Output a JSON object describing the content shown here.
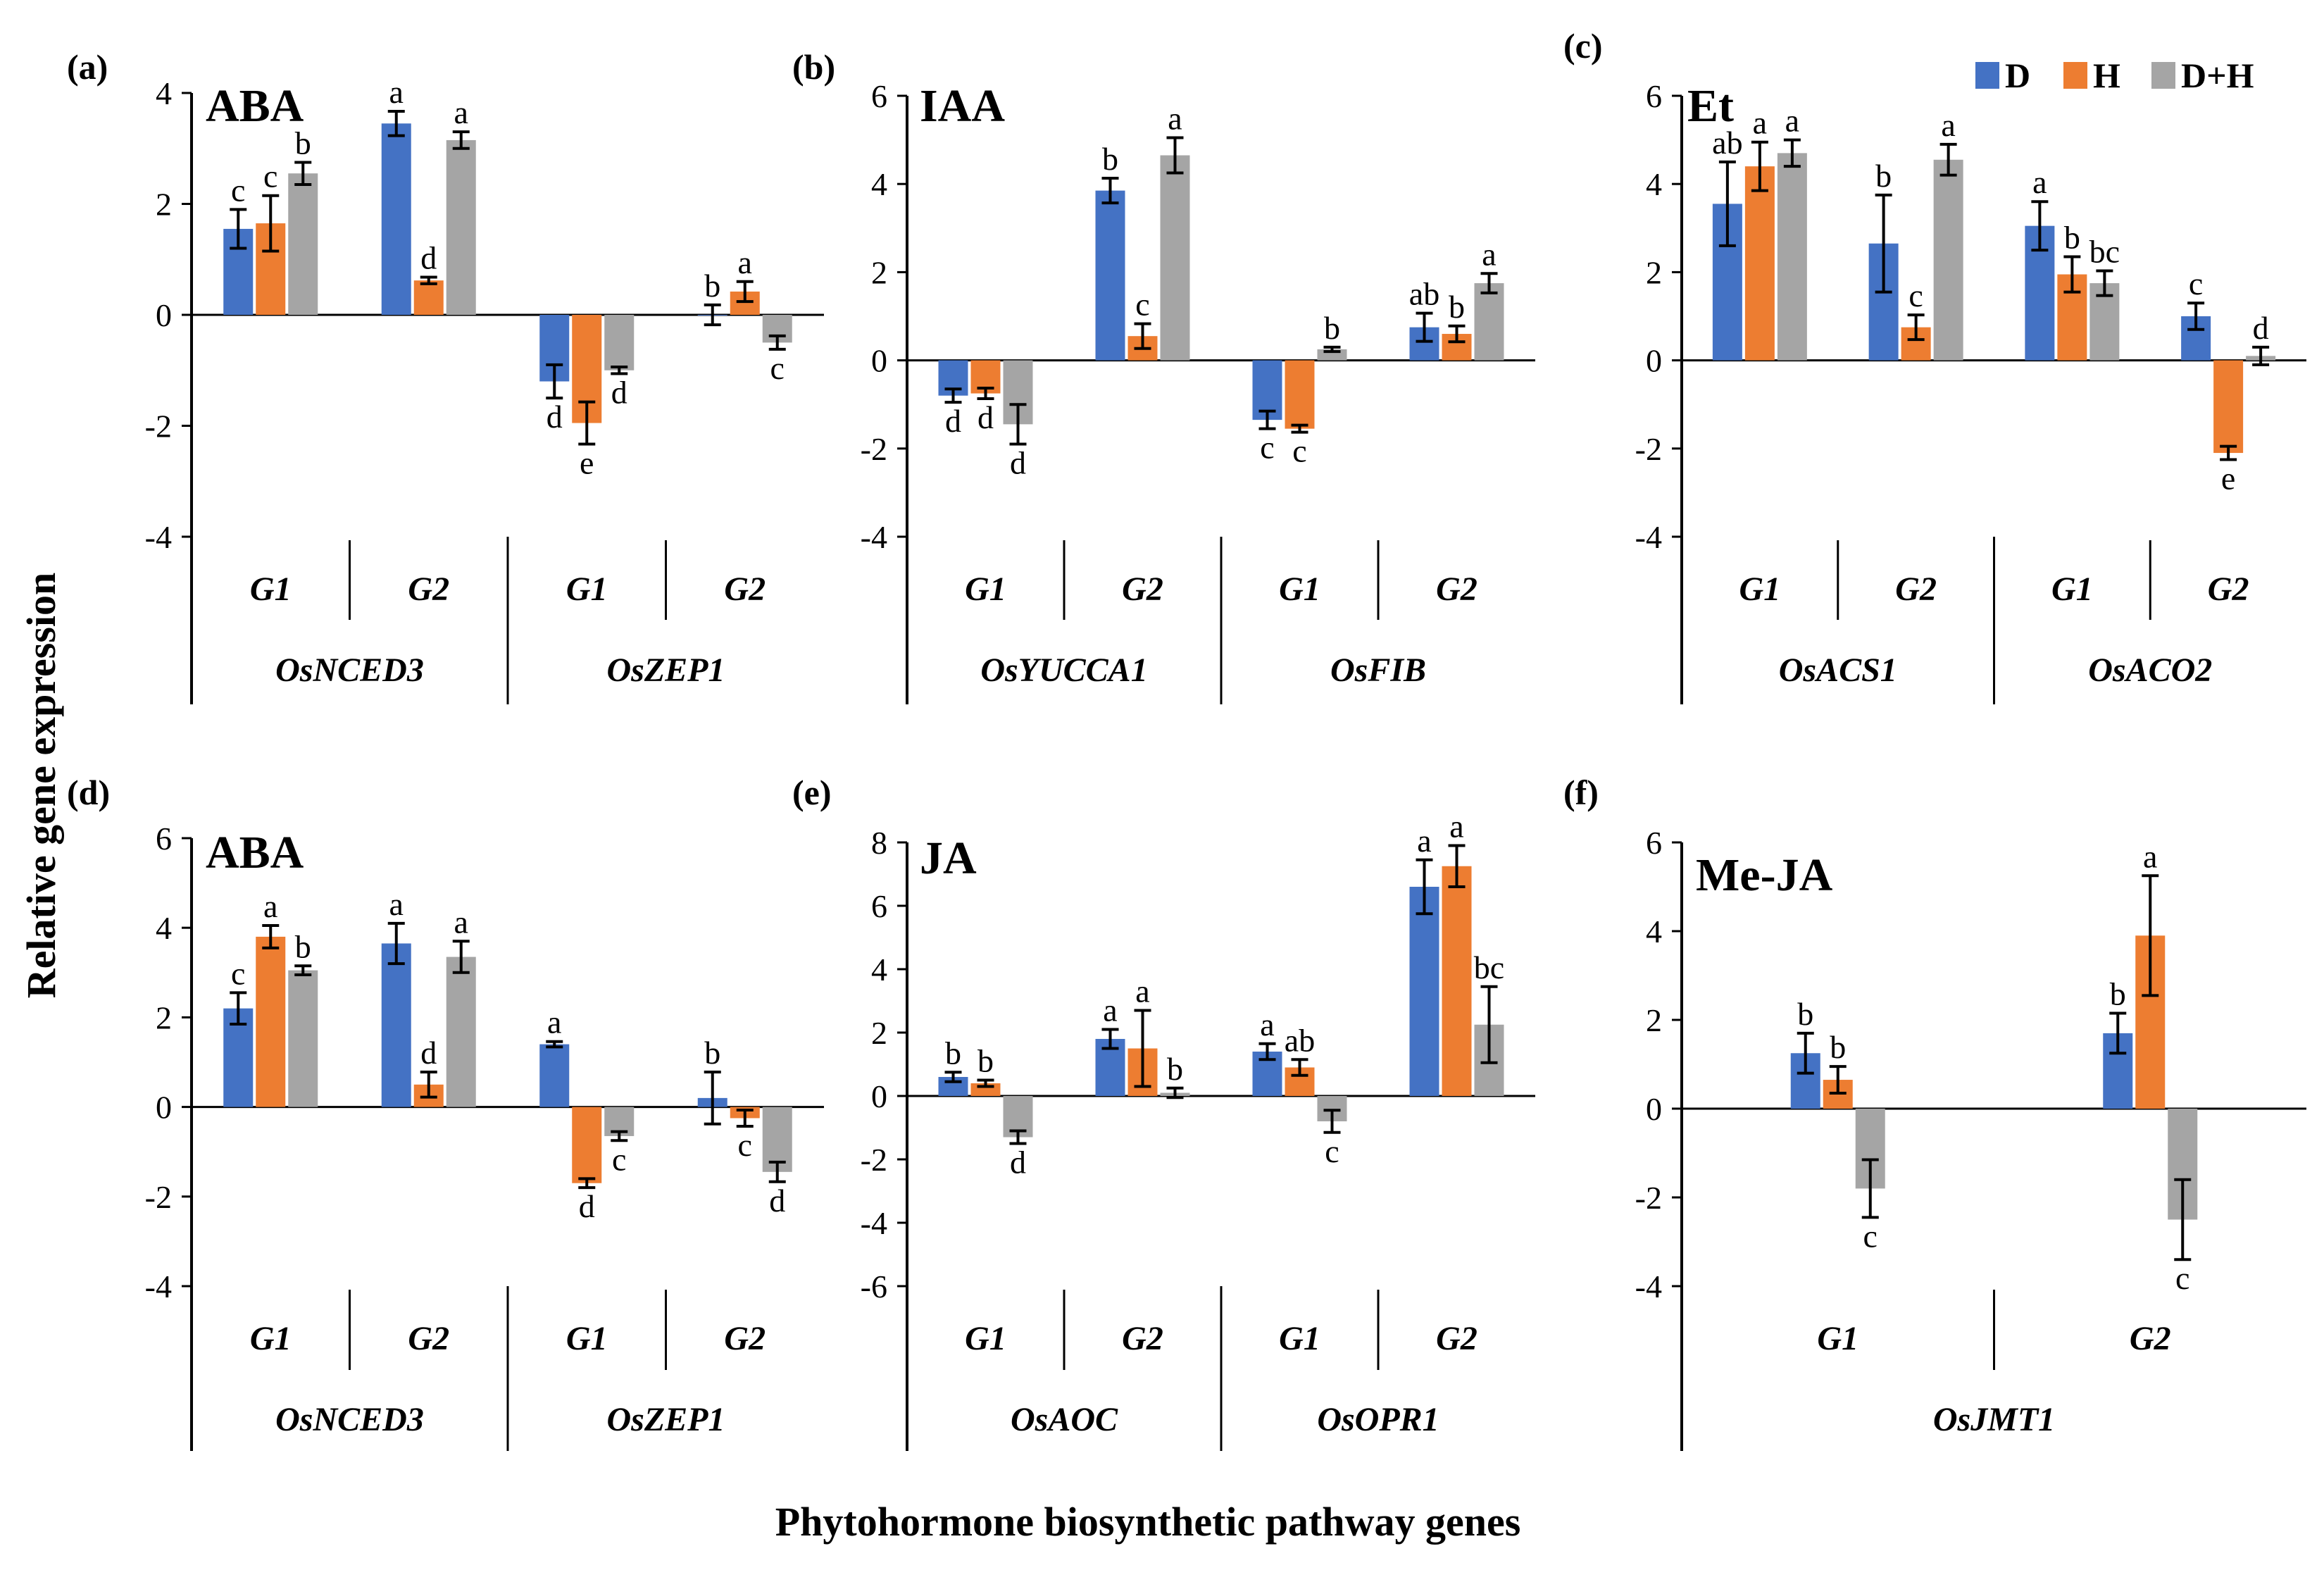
{
  "figure": {
    "ylabel": "Relative gene expression",
    "xlabel": "Phytohormone biosynthetic pathway genes"
  },
  "legend": [
    {
      "name": "D",
      "color": "#4472C4"
    },
    {
      "name": "H",
      "color": "#ED7D31"
    },
    {
      "name": "D+H",
      "color": "#A5A5A5"
    }
  ],
  "chart_data": [
    {
      "panel": "(a)",
      "title": "ABA",
      "type": "bar",
      "ylim": [
        -4,
        4
      ],
      "ticks": [
        4,
        2,
        0,
        -2,
        -4
      ],
      "categories": [
        "G1",
        "G2",
        "G1",
        "G2"
      ],
      "genes": [
        "OsNCED3",
        "OsZEP1"
      ],
      "series": [
        {
          "name": "D",
          "values": [
            1.55,
            3.45,
            -1.2,
            0.0
          ],
          "errors": [
            0.35,
            0.22,
            0.3,
            0.18
          ],
          "letters": [
            "c",
            "a",
            "d",
            "b"
          ]
        },
        {
          "name": "H",
          "values": [
            1.65,
            0.62,
            -1.95,
            0.42
          ],
          "errors": [
            0.5,
            0.06,
            0.38,
            0.18
          ],
          "letters": [
            "c",
            "d",
            "e",
            "a"
          ]
        },
        {
          "name": "D+H",
          "values": [
            2.55,
            3.15,
            -1.0,
            -0.5
          ],
          "errors": [
            0.2,
            0.15,
            0.06,
            0.12
          ],
          "letters": [
            "b",
            "a",
            "d",
            "c"
          ]
        }
      ]
    },
    {
      "panel": "(b)",
      "title": "IAA",
      "type": "bar",
      "ylim": [
        -4,
        6
      ],
      "ticks": [
        6,
        4,
        2,
        0,
        -2,
        -4
      ],
      "categories": [
        "G1",
        "G2",
        "G1",
        "G2"
      ],
      "genes": [
        "OsYUCCA1",
        "OsFIB"
      ],
      "series": [
        {
          "name": "D",
          "values": [
            -0.8,
            3.85,
            -1.35,
            0.75
          ],
          "errors": [
            0.15,
            0.28,
            0.2,
            0.32
          ],
          "letters": [
            "d",
            "b",
            "c",
            "ab"
          ]
        },
        {
          "name": "H",
          "values": [
            -0.75,
            0.55,
            -1.55,
            0.6
          ],
          "errors": [
            0.12,
            0.28,
            0.08,
            0.18
          ],
          "letters": [
            "d",
            "c",
            "c",
            "b"
          ]
        },
        {
          "name": "D+H",
          "values": [
            -1.45,
            4.65,
            0.25,
            1.75
          ],
          "errors": [
            0.45,
            0.4,
            0.05,
            0.22
          ],
          "letters": [
            "d",
            "a",
            "b",
            "a"
          ]
        }
      ]
    },
    {
      "panel": "(c)",
      "title": "Et",
      "type": "bar",
      "ylim": [
        -4,
        6
      ],
      "ticks": [
        6,
        4,
        2,
        0,
        -2,
        -4
      ],
      "categories": [
        "G1",
        "G2",
        "G1",
        "G2"
      ],
      "genes": [
        "OsACS1",
        "OsACO2"
      ],
      "series": [
        {
          "name": "D",
          "values": [
            3.55,
            2.65,
            3.05,
            1.0
          ],
          "errors": [
            0.95,
            1.1,
            0.55,
            0.3
          ],
          "letters": [
            "ab",
            "b",
            "a",
            "c"
          ]
        },
        {
          "name": "H",
          "values": [
            4.4,
            0.75,
            1.95,
            -2.1
          ],
          "errors": [
            0.55,
            0.28,
            0.4,
            0.15
          ],
          "letters": [
            "a",
            "c",
            "b",
            "e"
          ]
        },
        {
          "name": "D+H",
          "values": [
            4.7,
            4.55,
            1.75,
            0.1
          ],
          "errors": [
            0.3,
            0.35,
            0.28,
            0.2
          ],
          "letters": [
            "a",
            "a",
            "bc",
            "d"
          ]
        }
      ]
    },
    {
      "panel": "(d)",
      "title": "ABA",
      "type": "bar",
      "ylim": [
        -4,
        6
      ],
      "ticks": [
        6,
        4,
        2,
        0,
        -2,
        -4
      ],
      "categories": [
        "G1",
        "G2",
        "G1",
        "G2"
      ],
      "genes": [
        "OsNCED3",
        "OsZEP1"
      ],
      "series": [
        {
          "name": "D",
          "values": [
            2.2,
            3.65,
            1.4,
            0.2
          ],
          "errors": [
            0.35,
            0.45,
            0.06,
            0.58
          ],
          "letters": [
            "c",
            "a",
            "a",
            "b"
          ]
        },
        {
          "name": "H",
          "values": [
            3.8,
            0.5,
            -1.7,
            -0.25
          ],
          "errors": [
            0.25,
            0.28,
            0.1,
            0.18
          ],
          "letters": [
            "a",
            "d",
            "d",
            "c"
          ]
        },
        {
          "name": "D+H",
          "values": [
            3.05,
            3.35,
            -0.65,
            -1.45
          ],
          "errors": [
            0.1,
            0.35,
            0.1,
            0.22
          ],
          "letters": [
            "b",
            "a",
            "c",
            "d"
          ]
        }
      ]
    },
    {
      "panel": "(e)",
      "title": "JA",
      "type": "bar",
      "ylim": [
        -6,
        8
      ],
      "ticks": [
        8,
        6,
        4,
        2,
        0,
        -2,
        -4,
        -6
      ],
      "categories": [
        "G1",
        "G2",
        "G1",
        "G2"
      ],
      "genes": [
        "OsAOC",
        "OsOPR1"
      ],
      "series": [
        {
          "name": "D",
          "values": [
            0.6,
            1.8,
            1.4,
            6.6
          ],
          "errors": [
            0.15,
            0.3,
            0.25,
            0.85
          ],
          "letters": [
            "b",
            "a",
            "a",
            "a"
          ]
        },
        {
          "name": "H",
          "values": [
            0.4,
            1.5,
            0.9,
            7.25
          ],
          "errors": [
            0.1,
            1.2,
            0.25,
            0.65
          ],
          "letters": [
            "b",
            "a",
            "ab",
            "a"
          ]
        },
        {
          "name": "D+H",
          "values": [
            -1.3,
            0.1,
            -0.8,
            2.25
          ],
          "errors": [
            0.2,
            0.15,
            0.35,
            1.2
          ],
          "letters": [
            "d",
            "b",
            "c",
            "bc"
          ]
        }
      ]
    },
    {
      "panel": "(f)",
      "title": "Me-JA",
      "type": "bar",
      "ylim": [
        -4,
        6
      ],
      "ticks": [
        6,
        4,
        2,
        0,
        -2,
        -4
      ],
      "categories": [
        "G1",
        "G2"
      ],
      "genes": [
        "OsJMT1"
      ],
      "series": [
        {
          "name": "D",
          "values": [
            1.25,
            1.7
          ],
          "errors": [
            0.45,
            0.45
          ],
          "letters": [
            "b",
            "b"
          ]
        },
        {
          "name": "H",
          "values": [
            0.65,
            3.9
          ],
          "errors": [
            0.3,
            1.35
          ],
          "letters": [
            "b",
            "a"
          ]
        },
        {
          "name": "D+H",
          "values": [
            -1.8,
            -2.5
          ],
          "errors": [
            0.65,
            0.9
          ],
          "letters": [
            "c",
            "c"
          ]
        }
      ]
    }
  ]
}
